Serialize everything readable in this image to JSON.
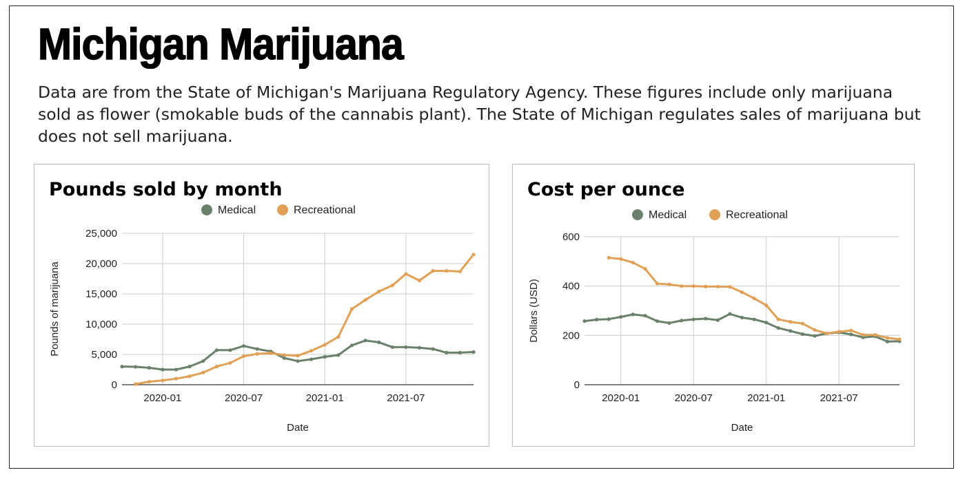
{
  "page": {
    "title": "Michigan Marijuana",
    "description": "Data are from the State of Michigan's Marijuana Regulatory Agency. These figures include only marijuana sold as flower (smokable buds of the cannabis plant). The State of Michigan regulates sales of marijuana but does not sell marijuana."
  },
  "colors": {
    "medical": "#6b806b",
    "recreational": "#e0a055"
  },
  "chart_data": [
    {
      "type": "line",
      "title": "Pounds sold by month",
      "xlabel": "Date",
      "ylabel": "Pounds of marijuana",
      "x": [
        "2019-10",
        "2019-11",
        "2019-12",
        "2020-01",
        "2020-02",
        "2020-03",
        "2020-04",
        "2020-05",
        "2020-06",
        "2020-07",
        "2020-08",
        "2020-09",
        "2020-10",
        "2020-11",
        "2020-12",
        "2021-01",
        "2021-02",
        "2021-03",
        "2021-04",
        "2021-05",
        "2021-06",
        "2021-07",
        "2021-08",
        "2021-09",
        "2021-10",
        "2021-11",
        "2021-12"
      ],
      "series": [
        {
          "name": "Medical",
          "values": [
            3000,
            2950,
            2800,
            2500,
            2500,
            3000,
            3900,
            5700,
            5700,
            6400,
            5900,
            5500,
            4400,
            3900,
            4200,
            4600,
            4900,
            6500,
            7300,
            7000,
            6200,
            6200,
            6100,
            5900,
            5300,
            5300,
            5400
          ]
        },
        {
          "name": "Recreational",
          "values": [
            null,
            100,
            500,
            700,
            1000,
            1400,
            2000,
            3000,
            3600,
            4700,
            5100,
            5200,
            4900,
            4800,
            5600,
            6600,
            7900,
            12500,
            14000,
            15400,
            16400,
            18300,
            17200,
            18800,
            18800,
            18700,
            21500
          ]
        }
      ],
      "yticks": [
        "0",
        "5,000",
        "10,000",
        "15,000",
        "20,000",
        "25,000"
      ],
      "ylim": [
        0,
        25000
      ],
      "xticks": [
        "2020-01",
        "2020-07",
        "2021-01",
        "2021-07"
      ],
      "legend": "top",
      "grid": true
    },
    {
      "type": "line",
      "title": "Cost per ounce",
      "xlabel": "Date",
      "ylabel": "Dollars (USD)",
      "x": [
        "2019-10",
        "2019-11",
        "2019-12",
        "2020-01",
        "2020-02",
        "2020-03",
        "2020-04",
        "2020-05",
        "2020-06",
        "2020-07",
        "2020-08",
        "2020-09",
        "2020-10",
        "2020-11",
        "2020-12",
        "2021-01",
        "2021-02",
        "2021-03",
        "2021-04",
        "2021-05",
        "2021-06",
        "2021-07",
        "2021-08",
        "2021-09",
        "2021-10",
        "2021-11",
        "2021-12"
      ],
      "series": [
        {
          "name": "Medical",
          "values": [
            258,
            264,
            266,
            275,
            285,
            280,
            258,
            250,
            260,
            265,
            268,
            262,
            287,
            272,
            265,
            252,
            230,
            218,
            205,
            198,
            208,
            212,
            204,
            192,
            196,
            175,
            176
          ]
        },
        {
          "name": "Recreational",
          "values": [
            null,
            null,
            515,
            510,
            495,
            470,
            410,
            407,
            400,
            400,
            398,
            398,
            397,
            375,
            350,
            322,
            265,
            255,
            248,
            222,
            208,
            215,
            220,
            202,
            202,
            190,
            184
          ]
        }
      ],
      "yticks": [
        "0",
        "200",
        "400",
        "600"
      ],
      "ylim": [
        0,
        600
      ],
      "xticks": [
        "2020-01",
        "2020-07",
        "2021-01",
        "2021-07"
      ],
      "legend": "top",
      "grid": true
    }
  ]
}
